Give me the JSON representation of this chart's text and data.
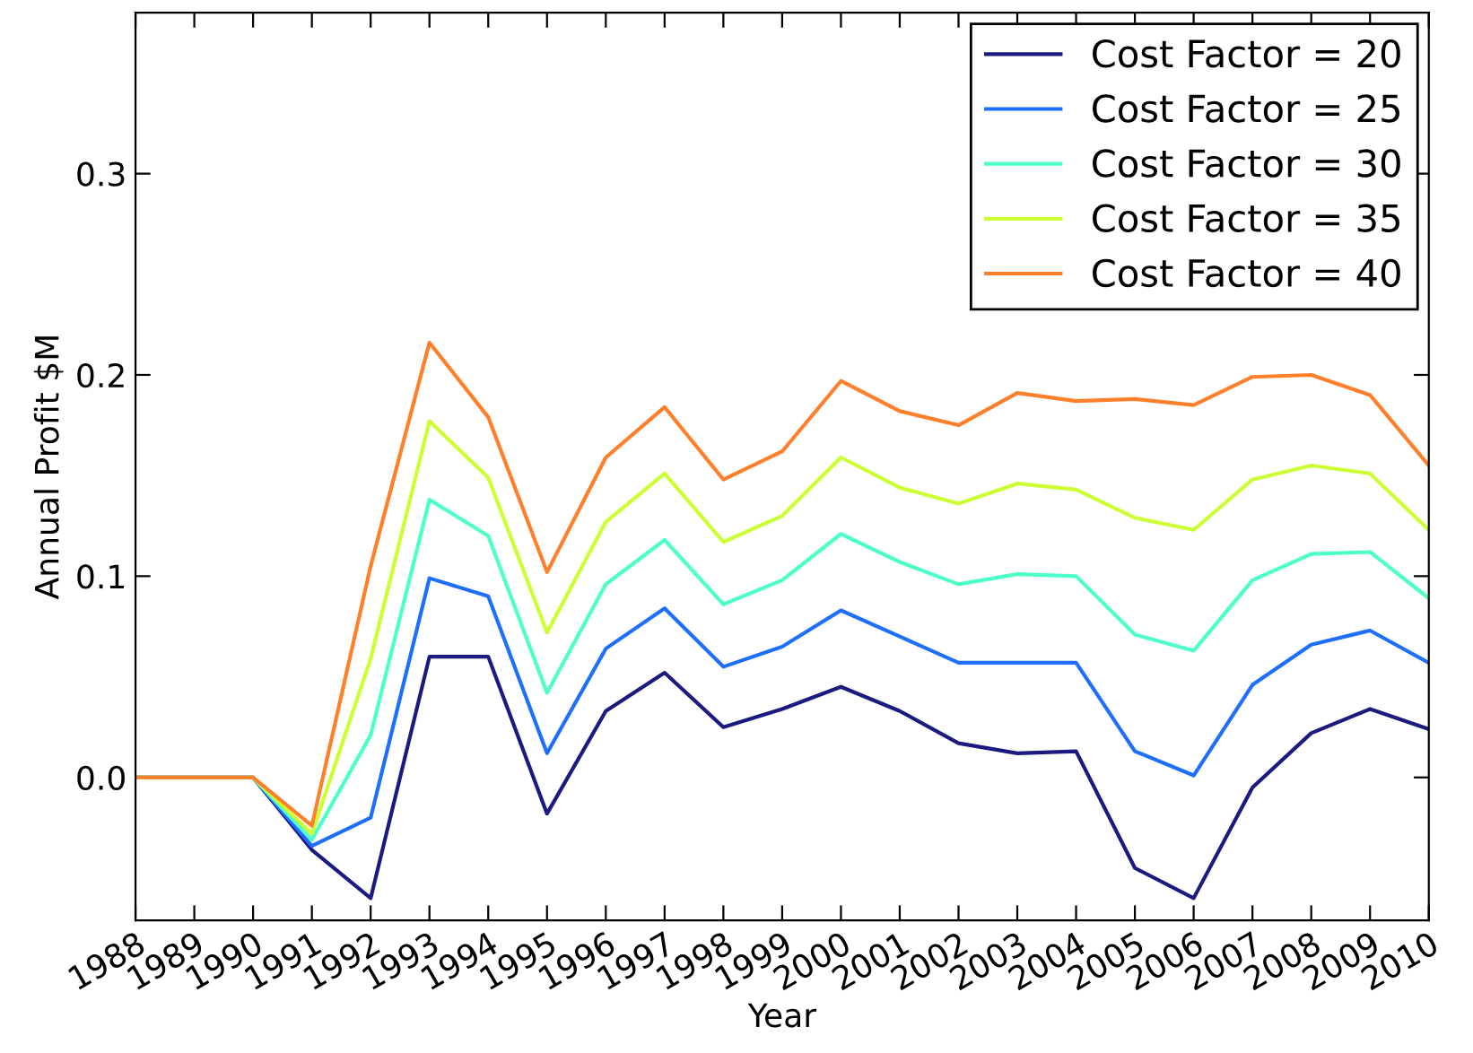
{
  "chart_data": {
    "type": "line",
    "xlabel": "Year",
    "ylabel": "Annual Profit $M",
    "x": [
      1988,
      1989,
      1990,
      1991,
      1992,
      1993,
      1994,
      1995,
      1996,
      1997,
      1998,
      1999,
      2000,
      2001,
      2002,
      2003,
      2004,
      2005,
      2006,
      2007,
      2008,
      2009,
      2010
    ],
    "series": [
      {
        "name": "Cost Factor = 20",
        "color": "#1a1a80",
        "values": [
          0,
          0,
          0,
          -0.036,
          -0.06,
          0.06,
          0.06,
          -0.018,
          0.033,
          0.052,
          0.025,
          0.034,
          0.045,
          0.033,
          0.017,
          0.012,
          0.013,
          -0.045,
          -0.06,
          -0.005,
          0.022,
          0.034,
          0.024
        ]
      },
      {
        "name": "Cost Factor = 25",
        "color": "#1f6fff",
        "values": [
          0,
          0,
          0,
          -0.034,
          -0.02,
          0.099,
          0.09,
          0.012,
          0.064,
          0.084,
          0.055,
          0.065,
          0.083,
          0.07,
          0.057,
          0.057,
          0.057,
          0.013,
          0.001,
          0.046,
          0.066,
          0.073,
          0.057
        ]
      },
      {
        "name": "Cost Factor = 30",
        "color": "#4dffc8",
        "values": [
          0,
          0,
          0,
          -0.031,
          0.021,
          0.138,
          0.12,
          0.042,
          0.096,
          0.118,
          0.086,
          0.098,
          0.121,
          0.107,
          0.096,
          0.101,
          0.1,
          0.071,
          0.063,
          0.098,
          0.111,
          0.112,
          0.089
        ]
      },
      {
        "name": "Cost Factor = 35",
        "color": "#ccff33",
        "values": [
          0,
          0,
          0,
          -0.028,
          0.059,
          0.177,
          0.149,
          0.072,
          0.127,
          0.151,
          0.117,
          0.13,
          0.159,
          0.144,
          0.136,
          0.146,
          0.143,
          0.129,
          0.123,
          0.148,
          0.155,
          0.151,
          0.123
        ]
      },
      {
        "name": "Cost Factor = 40",
        "color": "#ff7f2a",
        "values": [
          0,
          0,
          0,
          -0.024,
          0.105,
          0.216,
          0.179,
          0.102,
          0.159,
          0.184,
          0.148,
          0.162,
          0.197,
          0.182,
          0.175,
          0.191,
          0.187,
          0.188,
          0.185,
          0.199,
          0.2,
          0.19,
          0.155
        ]
      }
    ],
    "xlim": [
      1988,
      2010
    ],
    "xticks": [
      1988,
      1989,
      1990,
      1991,
      1992,
      1993,
      1994,
      1995,
      1996,
      1997,
      1998,
      1999,
      2000,
      2001,
      2002,
      2003,
      2004,
      2005,
      2006,
      2007,
      2008,
      2009,
      2010
    ],
    "ylim": [
      -0.071,
      0.38
    ],
    "yticks": [
      {
        "value": 0,
        "label": "0.0"
      },
      0.1,
      0.2,
      0.3
    ],
    "legend": "top right",
    "grid": false,
    "marker": "none",
    "line_style": "solid"
  }
}
